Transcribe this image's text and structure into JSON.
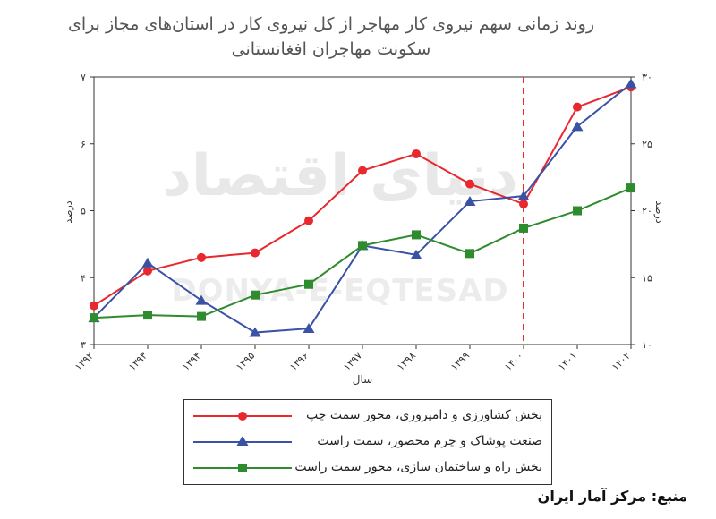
{
  "title_line1": "روند زمانی سهم نیروی کار مهاجر از کل نیروی کار در استان‌های مجاز برای",
  "title_line2": "سکونت مهاجران افغانستانی",
  "source": "منبع: مرکز آمار ایران",
  "watermark_fa": "دنیای اقتصاد",
  "watermark_en": "DONYA-E-EQTESAD",
  "chart_data": {
    "type": "line",
    "x": [
      "۱۳۹۲",
      "۱۳۹۳",
      "۱۳۹۴",
      "۱۳۹۵",
      "۱۳۹۶",
      "۱۳۹۷",
      "۱۳۹۸",
      "۱۳۹۹",
      "۱۴۰۰",
      "۱۴۰۱",
      "۱۴۰۲"
    ],
    "xlabel": "سال",
    "ylabel_left": "درصد",
    "ylabel_right": "درصد",
    "ylim_left": [
      3,
      7
    ],
    "ylim_right": [
      10,
      30
    ],
    "yticks_left": [
      "۳",
      "۴",
      "۵",
      "۶",
      "۷"
    ],
    "yticks_right": [
      "۱۰",
      "۱۵",
      "۲۰",
      "۲۵",
      "۳۰"
    ],
    "ytick_values_left": [
      3,
      4,
      5,
      6,
      7
    ],
    "ytick_values_right": [
      10,
      15,
      20,
      25,
      30
    ],
    "vline_at": "۱۴۰۰",
    "vline_color": "#e8322b",
    "series": [
      {
        "name": "بخش کشاورزی و دامپروری، محور سمت چپ",
        "axis": "left",
        "color": "#e8282e",
        "marker": "circle",
        "values": [
          3.58,
          4.1,
          4.3,
          4.37,
          4.85,
          5.6,
          5.85,
          5.4,
          5.1,
          6.55,
          6.85
        ]
      },
      {
        "name": "صنعت پوشاک و چرم محصور، سمت راست",
        "axis": "right",
        "color": "#3a52a6",
        "marker": "triangle",
        "values": [
          12.0,
          16.1,
          13.3,
          10.9,
          11.2,
          17.4,
          16.7,
          20.7,
          21.1,
          26.3,
          29.5
        ]
      },
      {
        "name": "بخش راه و ساختمان سازی، محور سمت راست",
        "axis": "right",
        "color": "#2e8b2e",
        "marker": "square",
        "values": [
          12.0,
          12.2,
          12.1,
          13.7,
          14.5,
          17.4,
          18.2,
          16.8,
          18.7,
          20.0,
          21.7
        ]
      }
    ]
  }
}
